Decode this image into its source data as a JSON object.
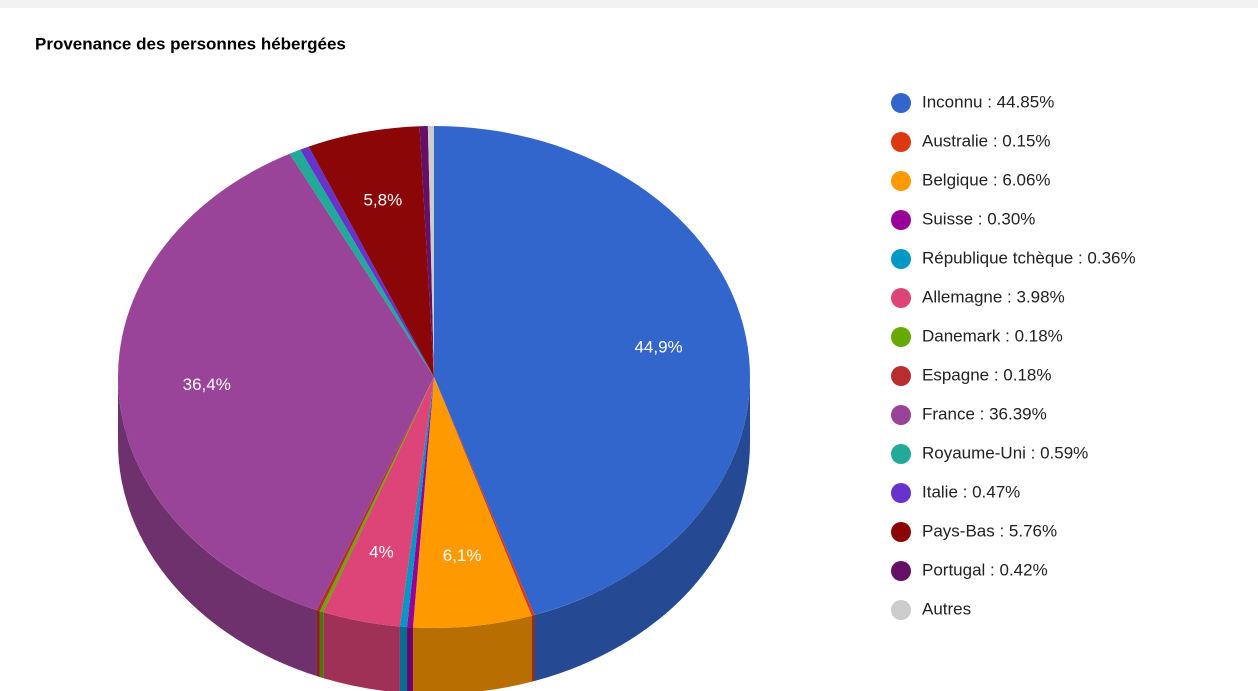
{
  "chart_data": {
    "type": "pie3d",
    "title": "Provenance des personnes hébergées",
    "categories": [
      "Inconnu : 44.85%",
      "Australie : 0.15%",
      "Belgique : 6.06%",
      "Suisse : 0.30%",
      "République tchèque : 0.36%",
      "Allemagne : 3.98%",
      "Danemark : 0.18%",
      "Espagne : 0.18%",
      "France : 36.39%",
      "Royaume-Uni : 0.59%",
      "Italie : 0.47%",
      "Pays-Bas : 5.76%",
      "Portugal : 0.42%",
      "Autres"
    ],
    "values": [
      44.85,
      0.15,
      6.06,
      0.3,
      0.36,
      3.98,
      0.18,
      0.18,
      36.39,
      0.59,
      0.47,
      5.76,
      0.42,
      0.31
    ],
    "value_labels": [
      "44,9%",
      null,
      "6,1%",
      null,
      null,
      "4%",
      null,
      null,
      "36,4%",
      null,
      null,
      "5,8%",
      null,
      null
    ],
    "colors": [
      "#3366cc",
      "#dc3912",
      "#ff9900",
      "#990099",
      "#0099c6",
      "#dd4477",
      "#66aa00",
      "#b82e2e",
      "#994499",
      "#22aa99",
      "#6633cc",
      "#8b0707",
      "#651067",
      "#cccccc"
    ],
    "legend": "right"
  }
}
